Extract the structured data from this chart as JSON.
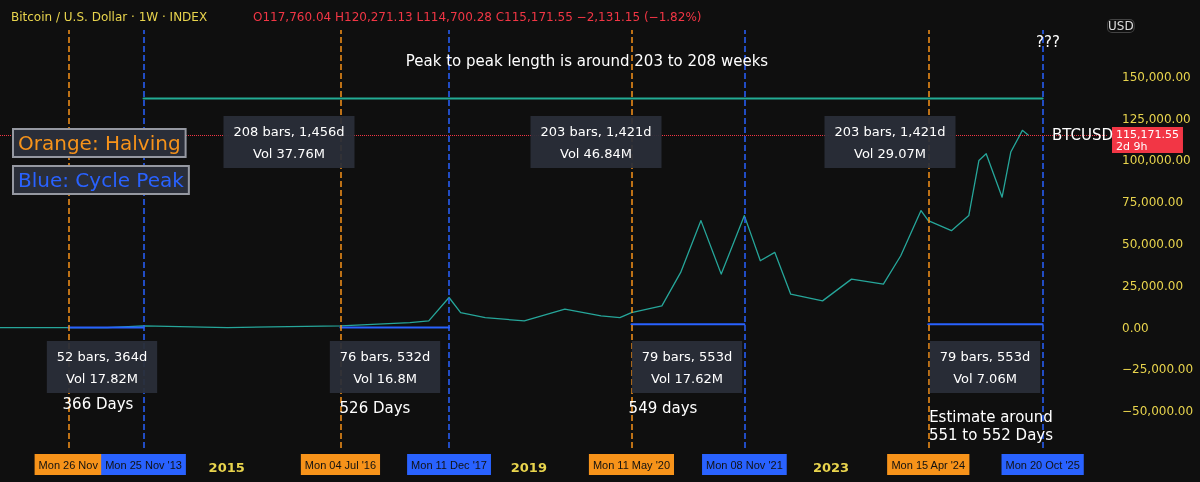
{
  "chart_data": {
    "type": "line",
    "title": "Bitcoin / U.S. Dollar · 1W · INDEX",
    "subtitle": "O117,760.04 H120,271.13 L114,700.28 C115,171.55 −2,131.15 (−1.82%)",
    "ylabel": "USD",
    "xlim": [
      "2012-01-01",
      "2026-09-01"
    ],
    "xticks": [
      "2015",
      "2019",
      "2023"
    ],
    "ylim": [
      -72000,
      178000
    ],
    "yticks": [
      {
        "value": -50000,
        "label": "−50,000.00"
      },
      {
        "value": -25000,
        "label": "−25,000.00"
      },
      {
        "value": 0,
        "label": "0.00"
      },
      {
        "value": 25000,
        "label": "25,000.00"
      },
      {
        "value": 50000,
        "label": "50,000.00"
      },
      {
        "value": 75000,
        "label": "75,000.00"
      },
      {
        "value": 100000,
        "label": "100,000.00"
      },
      {
        "value": 125000,
        "label": "125,000.00"
      },
      {
        "value": 150000,
        "label": "150,000.00"
      }
    ],
    "grid": false,
    "marker": "none",
    "line_style": "solid",
    "series": [
      {
        "color": "#26a69a",
        "x": [
          "2012-01-02",
          "2013-06-03",
          "2013-11-25",
          "2015-01-05",
          "2016-07-04",
          "2017-06-05",
          "2017-09-04",
          "2017-12-11",
          "2018-02-05",
          "2018-06-04",
          "2018-12-10",
          "2019-06-24",
          "2019-12-16",
          "2020-03-16",
          "2020-05-11",
          "2020-10-05",
          "2021-01-04",
          "2021-04-12",
          "2021-07-19",
          "2021-11-08",
          "2022-01-24",
          "2022-04-04",
          "2022-06-20",
          "2022-11-21",
          "2023-04-10",
          "2023-09-11",
          "2023-12-04",
          "2024-03-11",
          "2024-04-15",
          "2024-08-05",
          "2024-10-28",
          "2024-12-16",
          "2025-01-20",
          "2025-04-07",
          "2025-05-19",
          "2025-07-14",
          "2025-08-11"
        ],
        "values": [
          0,
          0,
          1000,
          0,
          1000,
          3000,
          4000,
          18000,
          9000,
          6000,
          4000,
          11000,
          7000,
          6000,
          9000,
          13000,
          33000,
          64000,
          32000,
          67000,
          40000,
          45000,
          20000,
          16000,
          29000,
          26000,
          43000,
          70000,
          64000,
          58000,
          67000,
          100000,
          104000,
          78000,
          105000,
          118000,
          115171.55
        ]
      },
      {
        "color": "#22ab94",
        "x": [
          "2013-11-25",
          "2017-12-11",
          "2021-11-08",
          "2025-10-20"
        ],
        "values": [
          137000,
          137000,
          137000,
          137000
        ]
      },
      {
        "color": "#2962ff",
        "x": [
          "2012-11-26",
          "2013-11-25"
        ],
        "values": [
          0,
          0
        ]
      },
      {
        "color": "#2962ff",
        "x": [
          "2016-07-04",
          "2017-12-11"
        ],
        "values": [
          0,
          0
        ]
      },
      {
        "color": "#2962ff",
        "x": [
          "2020-05-11",
          "2021-11-08"
        ],
        "values": [
          2000,
          2000
        ]
      },
      {
        "color": "#2962ff",
        "x": [
          "2024-04-15",
          "2025-10-20"
        ],
        "values": [
          2000,
          2000
        ]
      }
    ],
    "ref_lines": [
      {
        "axis": "x",
        "value": "2012-11-26",
        "label": "Mon 26 Nov",
        "color": "#f7931a",
        "line_style": "dashed"
      },
      {
        "axis": "x",
        "value": "2013-11-25",
        "label": "Mon 25 Nov '13",
        "color": "#2962ff",
        "line_style": "dashed"
      },
      {
        "axis": "x",
        "value": "2016-07-04",
        "label": "Mon 04 Jul '16",
        "color": "#f7931a",
        "line_style": "dashed"
      },
      {
        "axis": "x",
        "value": "2017-12-11",
        "label": "Mon 11 Dec '17",
        "color": "#2962ff",
        "line_style": "dashed"
      },
      {
        "axis": "x",
        "value": "2020-05-11",
        "label": "Mon 11 May '20",
        "color": "#f7931a",
        "line_style": "dashed"
      },
      {
        "axis": "x",
        "value": "2021-11-08",
        "label": "Mon 08 Nov '21",
        "color": "#2962ff",
        "line_style": "dashed"
      },
      {
        "axis": "x",
        "value": "2024-04-15",
        "label": "Mon 15 Apr '24",
        "color": "#f7931a",
        "line_style": "dashed"
      },
      {
        "axis": "x",
        "value": "2025-10-20",
        "label": "Mon 20 Oct '25",
        "color": "#2962ff",
        "line_style": "dashed"
      },
      {
        "axis": "y",
        "value": 115171.55,
        "label": "115,171.55\n2d 9h",
        "color": "#f23645",
        "line_style": "dotted"
      }
    ],
    "annotations": [
      "Orange: Halving",
      "Blue: Cycle Peak",
      "Peak to peak length is around 203 to 208 weeks",
      "???",
      "208 bars, 1,456d\nVol 37.76M",
      "203 bars, 1,421d\nVol 46.84M",
      "203 bars, 1,421d\nVol 29.07M",
      "52 bars, 364d\nVol 17.82M",
      "76 bars, 532d\nVol 16.8M",
      "79 bars, 553d\nVol 17.62M",
      "79 bars, 553d\nVol 7.06M",
      "366 Days",
      "526 Days",
      "549 days",
      "Estimate around\n551 to 552 Days",
      {
        "text": "BTCUSD",
        "x": "2026-05-01",
        "y": 115171.55
      }
    ]
  }
}
